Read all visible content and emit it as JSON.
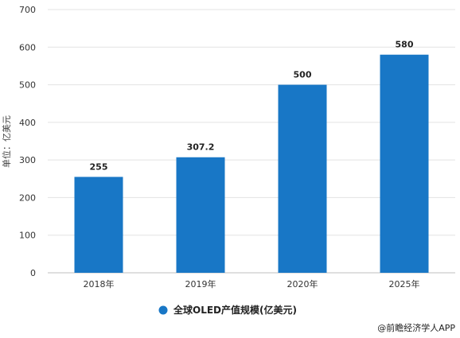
{
  "chart_data": {
    "type": "bar",
    "categories": [
      "2018年",
      "2019年",
      "2020年",
      "2025年"
    ],
    "series": [
      {
        "name": "全球OLED产值规模(亿美元)",
        "values": [
          255,
          307.2,
          500,
          580
        ],
        "labels": [
          "255",
          "307.2",
          "500",
          "580"
        ]
      }
    ],
    "ylabel": "单位：亿美元",
    "ylim": [
      0,
      700
    ],
    "yticks": [
      0,
      100,
      200,
      300,
      400,
      500,
      600,
      700
    ],
    "grid": true,
    "legend_position": "bottom",
    "colors": {
      "bar": "#1877c6",
      "grid": "#e3e3e3",
      "axis": "#bfbfbf"
    }
  },
  "source_credit": "@前瞻经济学人APP"
}
